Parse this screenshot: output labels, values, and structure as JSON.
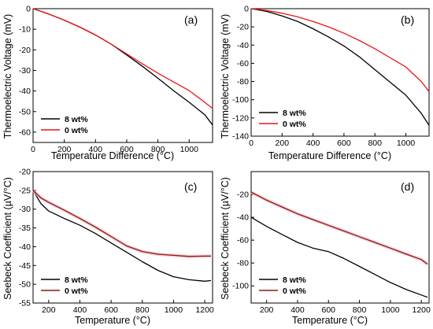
{
  "colors": {
    "black": "#000000",
    "red": "#e8141b",
    "brown": "#8b1a10",
    "pink_halo": "#f4b5c4"
  },
  "chart_data": [
    {
      "type": "line",
      "label": "(a)",
      "xlabel": "Temperature Difference (°C)",
      "ylabel": "Thermoelectric Voltage (mV)",
      "xlim": [
        0,
        1150
      ],
      "ylim": [
        -65,
        0
      ],
      "xticks": [
        "0",
        "200",
        "400",
        "600",
        "800",
        "1000"
      ],
      "yticks": [
        "0",
        "-10",
        "-20",
        "-30",
        "-40",
        "-50",
        "-60"
      ],
      "legend_position": "bottom-left",
      "series": [
        {
          "name": "8 wt%",
          "color": "#000000",
          "x": [
            0,
            100,
            200,
            300,
            400,
            500,
            600,
            700,
            800,
            900,
            1000,
            1100,
            1150
          ],
          "y": [
            0,
            -2.6,
            -5.6,
            -9,
            -12.8,
            -17.2,
            -22.5,
            -28,
            -33.8,
            -39.8,
            -45.5,
            -51.5,
            -56.5
          ]
        },
        {
          "name": "0 wt%",
          "color": "#e8141b",
          "x": [
            0,
            100,
            200,
            300,
            400,
            500,
            600,
            700,
            800,
            900,
            1000,
            1100,
            1150
          ],
          "y": [
            0,
            -2.6,
            -5.6,
            -9,
            -12.8,
            -17.2,
            -22,
            -26.8,
            -31.3,
            -35.6,
            -39.8,
            -45.5,
            -48.5
          ]
        }
      ]
    },
    {
      "type": "line",
      "label": "(b)",
      "xlabel": "Temperature Difference (°C)",
      "ylabel": "Thermoelectric Voltage (mV)",
      "xlim": [
        0,
        1150
      ],
      "ylim": [
        -140,
        0
      ],
      "xticks": [
        "0",
        "200",
        "400",
        "600",
        "800",
        "1000"
      ],
      "yticks": [
        "0",
        "-20",
        "-40",
        "-60",
        "-80",
        "-100",
        "-120",
        "-140"
      ],
      "legend_position": "bottom-left",
      "series": [
        {
          "name": "8 wt%",
          "color": "#000000",
          "x": [
            0,
            100,
            200,
            300,
            400,
            500,
            600,
            700,
            800,
            900,
            1000,
            1100,
            1150
          ],
          "y": [
            0,
            -3,
            -8,
            -14,
            -22,
            -31,
            -41,
            -53,
            -67,
            -81,
            -95,
            -115,
            -128
          ]
        },
        {
          "name": "0 wt%",
          "color": "#e8141b",
          "x": [
            0,
            100,
            200,
            300,
            400,
            500,
            600,
            700,
            800,
            900,
            1000,
            1100,
            1150
          ],
          "y": [
            0,
            -2,
            -5,
            -9,
            -14,
            -20,
            -27,
            -35,
            -44,
            -54,
            -64,
            -80,
            -91
          ]
        }
      ]
    },
    {
      "type": "line",
      "label": "(c)",
      "xlabel": "Temperature (°C)",
      "ylabel": "Seebeck Coefficient (µV/°C)",
      "xlim": [
        100,
        1250
      ],
      "ylim": [
        -55,
        -20
      ],
      "xticks": [
        "200",
        "400",
        "600",
        "800",
        "1000",
        "1200"
      ],
      "yticks": [
        "-20",
        "-25",
        "-30",
        "-35",
        "-40",
        "-45",
        "-50",
        "-55"
      ],
      "legend_position": "bottom-left",
      "series": [
        {
          "name": "8 wt%",
          "color": "#000000",
          "x": [
            100,
            150,
            200,
            300,
            400,
            500,
            600,
            700,
            800,
            900,
            1000,
            1100,
            1200,
            1240
          ],
          "y": [
            -25,
            -28.5,
            -30.5,
            -32.5,
            -34.3,
            -36.5,
            -39,
            -41.5,
            -44,
            -46.3,
            -48,
            -48.8,
            -49.2,
            -49
          ]
        },
        {
          "name": "0 wt%",
          "color": "#8b1a10",
          "x": [
            100,
            150,
            200,
            300,
            400,
            500,
            600,
            700,
            800,
            900,
            1000,
            1100,
            1200,
            1240
          ],
          "y": [
            -25,
            -27,
            -28.2,
            -30.3,
            -32.5,
            -34.8,
            -37.3,
            -39.8,
            -41.3,
            -42,
            -42.3,
            -42.6,
            -42.5,
            -42.5
          ]
        }
      ]
    },
    {
      "type": "line",
      "label": "(d)",
      "xlabel": "Temperature (°C)",
      "ylabel": "Seebeck Coefficient (µV/°C)",
      "xlim": [
        100,
        1250
      ],
      "ylim": [
        -115,
        0
      ],
      "xticks": [
        "200",
        "400",
        "600",
        "800",
        "1000",
        "1200"
      ],
      "yticks": [
        "-20",
        "-40",
        "-60",
        "-80",
        "-100"
      ],
      "legend_position": "bottom-left",
      "series": [
        {
          "name": "8 wt%",
          "color": "#000000",
          "x": [
            100,
            200,
            300,
            400,
            500,
            600,
            700,
            800,
            900,
            1000,
            1100,
            1200,
            1240
          ],
          "y": [
            -40,
            -48,
            -55,
            -62,
            -67,
            -70,
            -76,
            -83,
            -90,
            -97,
            -103,
            -108,
            -110
          ]
        },
        {
          "name": "0 wt%",
          "color": "#8b1a10",
          "x": [
            100,
            200,
            300,
            400,
            500,
            600,
            700,
            800,
            900,
            1000,
            1100,
            1200,
            1240
          ],
          "y": [
            -18,
            -25,
            -31,
            -37,
            -42,
            -47,
            -52,
            -57,
            -62,
            -67,
            -72,
            -77,
            -81
          ]
        }
      ]
    }
  ]
}
